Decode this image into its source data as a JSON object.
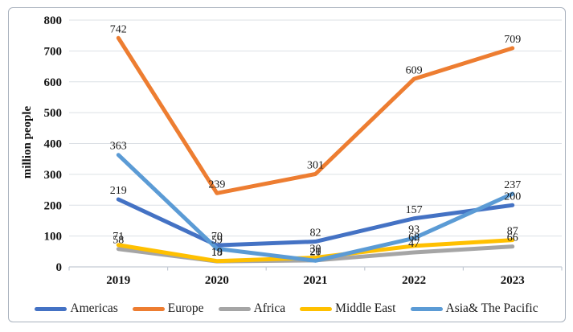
{
  "chart_data": {
    "type": "line",
    "title": "",
    "xlabel": "",
    "ylabel": "million people",
    "categories": [
      "2019",
      "2020",
      "2021",
      "2022",
      "2023"
    ],
    "ylim": [
      0,
      800
    ],
    "yticks": [
      0,
      100,
      200,
      300,
      400,
      500,
      600,
      700,
      800
    ],
    "grid": true,
    "data_labels": true,
    "legend_position": "bottom",
    "series": [
      {
        "name": "Americas",
        "color": "#4472C4",
        "values": [
          219,
          70,
          82,
          157,
          200
        ]
      },
      {
        "name": "Europe",
        "color": "#ED7D31",
        "values": [
          742,
          239,
          301,
          609,
          709
        ]
      },
      {
        "name": "Africa",
        "color": "#A5A5A5",
        "values": [
          58,
          18,
          21,
          47,
          66
        ]
      },
      {
        "name": "Middle East",
        "color": "#FFC000",
        "values": [
          71,
          19,
          30,
          68,
          87
        ]
      },
      {
        "name": "Asia& The Pacific",
        "color": "#5B9BD5",
        "values": [
          363,
          59,
          20,
          93,
          237
        ]
      }
    ]
  },
  "figure": {
    "background": "#ffffff",
    "border_color": "#a8b1bd",
    "grid_color": "#dce0e5",
    "axis_color": "#c3cad4",
    "label_color": "#1a1a1a"
  }
}
